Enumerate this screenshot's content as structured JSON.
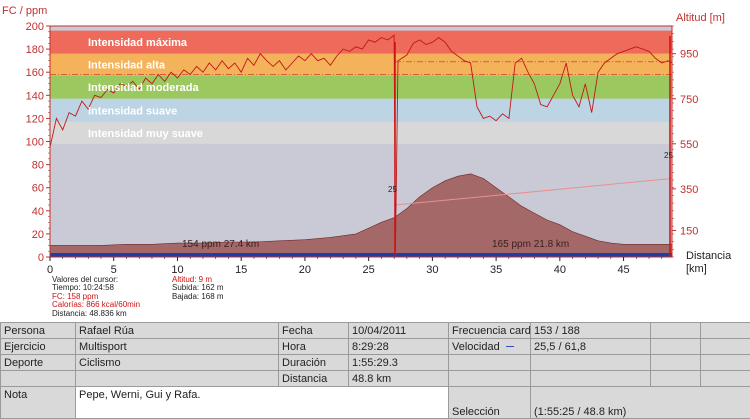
{
  "chart_data": {
    "type": "area",
    "left_axis": {
      "label": "FC / ppm",
      "min": 0,
      "max": 200,
      "ticks": [
        0,
        20,
        40,
        60,
        80,
        100,
        120,
        140,
        160,
        180,
        200
      ]
    },
    "right_axis": {
      "label": "Altitud [m]",
      "tick_labels": [
        "150",
        "350",
        "550",
        "750",
        "950"
      ]
    },
    "x_axis": {
      "label": "Distancia [km]",
      "label_line1": "Distancia",
      "label_line2": "[km]",
      "min": 0,
      "max": 48.8,
      "ticks": [
        0,
        5,
        10,
        15,
        20,
        25,
        30,
        35,
        40,
        45
      ]
    },
    "zones": [
      {
        "name": "Intensidad máxima",
        "from": 176,
        "to": 196,
        "color": "#ee6a5a"
      },
      {
        "name": "Intensidad alta",
        "from": 157,
        "to": 176,
        "color": "#f4b25a"
      },
      {
        "name": "Intensidad moderada",
        "from": 137,
        "to": 157,
        "color": "#9cc860"
      },
      {
        "name": "Intensidad suave",
        "from": 117,
        "to": 137,
        "color": "#bcd4e4"
      },
      {
        "name": "Intensidad muy suave",
        "from": 98,
        "to": 117,
        "color": "#d8d8d8"
      }
    ],
    "heart_rate_series": {
      "name": "FC",
      "color": "#c01818",
      "points": [
        [
          0,
          95
        ],
        [
          0.5,
          120
        ],
        [
          1,
          110
        ],
        [
          1.5,
          125
        ],
        [
          2,
          122
        ],
        [
          2.5,
          135
        ],
        [
          3,
          128
        ],
        [
          3.5,
          140
        ],
        [
          4,
          138
        ],
        [
          4.5,
          145
        ],
        [
          5,
          142
        ],
        [
          5.5,
          150
        ],
        [
          6,
          148
        ],
        [
          6.5,
          152
        ],
        [
          7,
          145
        ],
        [
          7.5,
          155
        ],
        [
          8,
          150
        ],
        [
          8.5,
          158
        ],
        [
          9,
          152
        ],
        [
          9.5,
          160
        ],
        [
          10,
          155
        ],
        [
          10.5,
          162
        ],
        [
          11,
          158
        ],
        [
          11.5,
          165
        ],
        [
          12,
          160
        ],
        [
          12.5,
          168
        ],
        [
          13,
          162
        ],
        [
          13.5,
          170
        ],
        [
          14,
          163
        ],
        [
          14.5,
          168
        ],
        [
          15,
          160
        ],
        [
          15.5,
          172
        ],
        [
          16,
          166
        ],
        [
          16.5,
          176
        ],
        [
          17,
          170
        ],
        [
          17.5,
          165
        ],
        [
          18,
          170
        ],
        [
          18.5,
          162
        ],
        [
          19,
          168
        ],
        [
          19.5,
          174
        ],
        [
          20,
          170
        ],
        [
          20.5,
          176
        ],
        [
          21,
          170
        ],
        [
          21.5,
          172
        ],
        [
          22,
          166
        ],
        [
          22.5,
          174
        ],
        [
          23,
          180
        ],
        [
          23.5,
          178
        ],
        [
          24,
          182
        ],
        [
          24.5,
          180
        ],
        [
          25,
          188
        ],
        [
          25.5,
          186
        ],
        [
          26,
          190
        ],
        [
          26.5,
          188
        ],
        [
          27,
          192
        ],
        [
          27.1,
          5
        ],
        [
          27.3,
          170
        ],
        [
          28,
          175
        ],
        [
          28.5,
          185
        ],
        [
          29,
          188
        ],
        [
          29.5,
          184
        ],
        [
          30,
          186
        ],
        [
          30.5,
          190
        ],
        [
          31,
          186
        ],
        [
          31.5,
          178
        ],
        [
          32,
          174
        ],
        [
          32.5,
          170
        ],
        [
          33,
          168
        ],
        [
          33.5,
          130
        ],
        [
          34,
          120
        ],
        [
          34.5,
          122
        ],
        [
          35,
          118
        ],
        [
          35.5,
          124
        ],
        [
          36,
          120
        ],
        [
          36.5,
          168
        ],
        [
          37,
          172
        ],
        [
          37.5,
          160
        ],
        [
          38,
          150
        ],
        [
          38.5,
          132
        ],
        [
          39,
          130
        ],
        [
          39.5,
          140
        ],
        [
          40,
          150
        ],
        [
          40.5,
          168
        ],
        [
          41,
          140
        ],
        [
          41.5,
          130
        ],
        [
          42,
          150
        ],
        [
          42.5,
          125
        ],
        [
          43,
          160
        ],
        [
          43.5,
          168
        ],
        [
          44,
          172
        ],
        [
          44.5,
          176
        ],
        [
          45,
          178
        ],
        [
          45.5,
          180
        ],
        [
          46,
          182
        ],
        [
          46.5,
          180
        ],
        [
          47,
          178
        ],
        [
          47.5,
          172
        ],
        [
          48,
          168
        ],
        [
          48.5,
          170
        ],
        [
          48.8,
          168
        ]
      ]
    },
    "altitude_series": {
      "name": "Altitud",
      "fill": "#a56868",
      "points": [
        [
          0,
          10
        ],
        [
          2,
          10
        ],
        [
          4,
          10
        ],
        [
          6,
          11
        ],
        [
          8,
          11
        ],
        [
          10,
          12
        ],
        [
          12,
          12
        ],
        [
          14,
          13
        ],
        [
          16,
          13
        ],
        [
          18,
          14
        ],
        [
          20,
          15
        ],
        [
          22,
          17
        ],
        [
          24,
          20
        ],
        [
          25,
          25
        ],
        [
          26,
          30
        ],
        [
          27,
          34
        ],
        [
          28,
          42
        ],
        [
          29,
          52
        ],
        [
          30,
          60
        ],
        [
          31,
          66
        ],
        [
          32,
          70
        ],
        [
          33,
          72
        ],
        [
          34,
          68
        ],
        [
          35,
          60
        ],
        [
          36,
          52
        ],
        [
          37,
          44
        ],
        [
          38,
          38
        ],
        [
          39,
          32
        ],
        [
          40,
          28
        ],
        [
          41,
          22
        ],
        [
          42,
          18
        ],
        [
          43,
          14
        ],
        [
          44,
          12
        ],
        [
          45,
          11
        ],
        [
          46,
          11
        ],
        [
          47,
          11
        ],
        [
          48,
          11
        ],
        [
          48.8,
          11
        ]
      ]
    },
    "annotations": [
      {
        "x": 27,
        "text": "154 ppm 27.4 km"
      },
      {
        "x": 43,
        "text": "165 ppm 21.8 km"
      },
      {
        "text": "25"
      },
      {
        "text": "25"
      }
    ],
    "zone_colors": {
      "plot_bg": "#cacad6",
      "border": "#c0302a",
      "blue_band": "#1a3fa8"
    }
  },
  "cursor_info": {
    "title": "Valores del cursor:",
    "tiempo": "Tiempo: 10:24:58",
    "fc": "FC: 158 ppm",
    "calorias": "Calorías: 866 kcal/60min",
    "distancia": "Distancia: 48.836 km",
    "altitud": "Altitud: 9 m",
    "subida": "Subida: 162 m",
    "bajada": "Bajada: 168 m"
  },
  "table": {
    "persona_label": "Persona",
    "persona_value": "Rafael Rúa",
    "ejercicio_label": "Ejercicio",
    "ejercicio_value": "Multisport",
    "deporte_label": "Deporte",
    "deporte_value": "Ciclismo",
    "nota_label": "Nota",
    "nota_value": "Pepe, Werni, Gui y Rafa.",
    "fecha_label": "Fecha",
    "fecha_value": "10/04/2011",
    "hora_label": "Hora",
    "hora_value": "8:29:28",
    "duracion_label": "Duración",
    "duracion_value": "1:55:29.3",
    "distancia_label": "Distancia",
    "distancia_value": "48.8 km",
    "frecuencia_label": "Frecuencia cardi",
    "frecuencia_value": "153 / 188",
    "velocidad_label": "Velocidad",
    "velocidad_value": "25,5 / 61,8",
    "seleccion_label": "Selección",
    "seleccion_value": "(1:55:25 / 48.8 km)"
  }
}
